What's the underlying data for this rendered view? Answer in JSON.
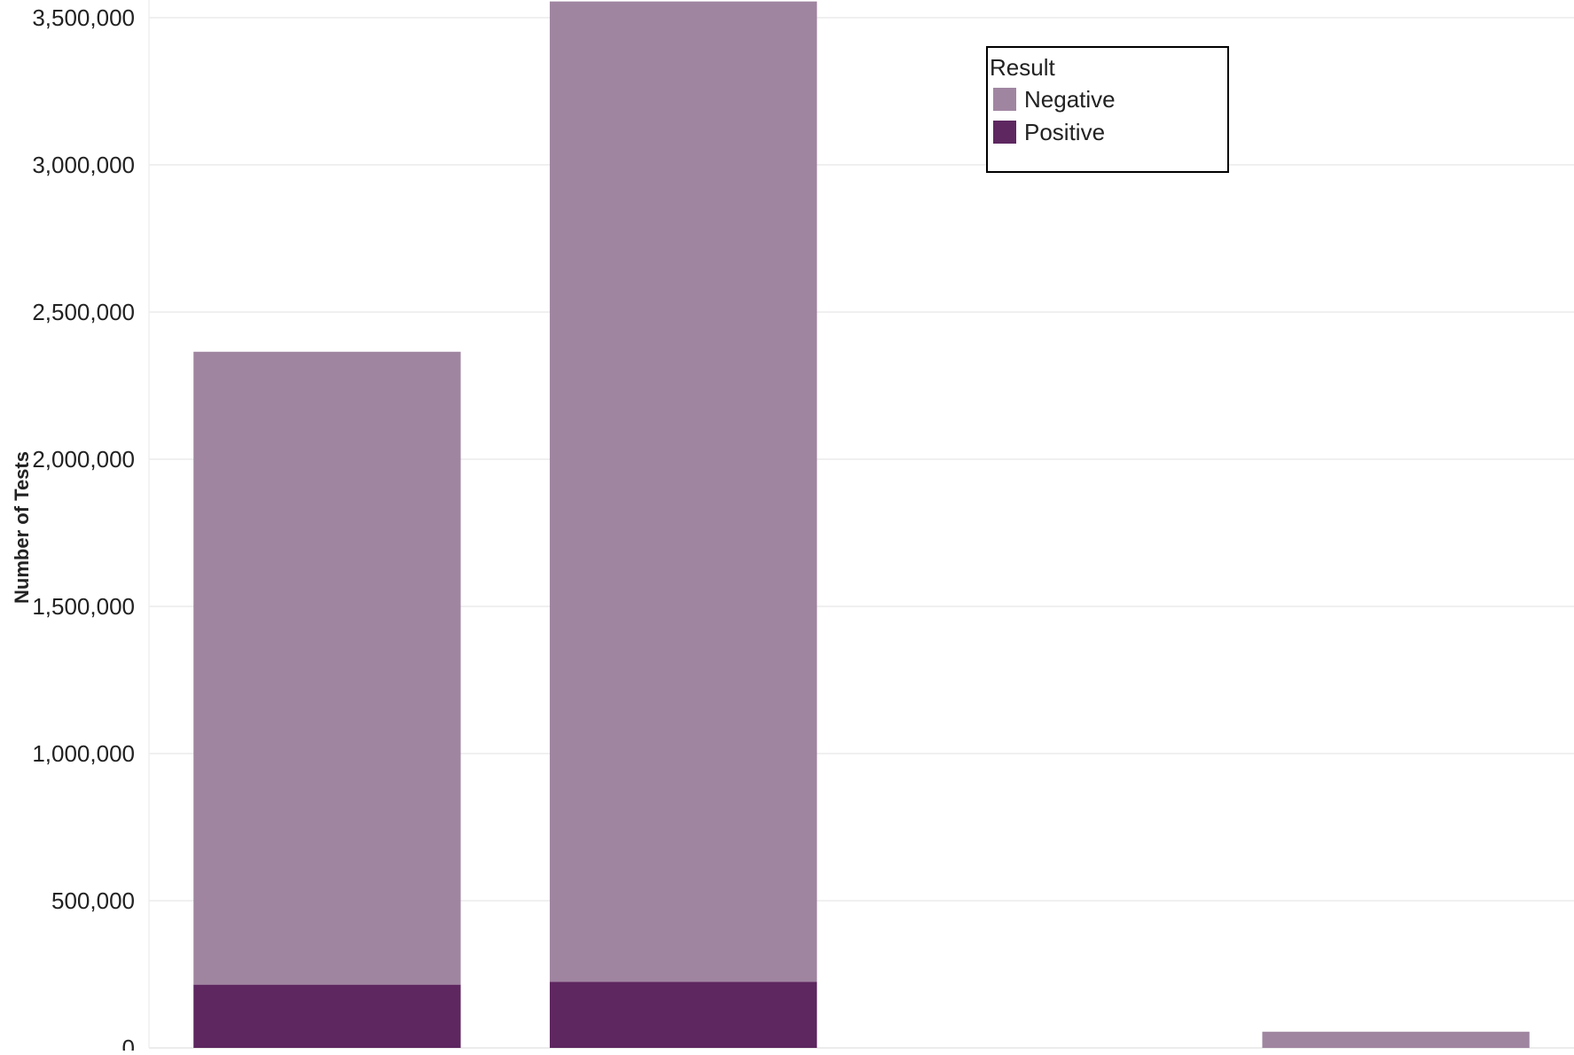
{
  "chart_data": {
    "type": "bar",
    "stacked": true,
    "title": "",
    "xlabel": "",
    "ylabel": "Number of Tests",
    "ylim": [
      0,
      3560000
    ],
    "yticks": [
      0,
      500000,
      1000000,
      1500000,
      2000000,
      2500000,
      3000000,
      3500000
    ],
    "ytick_labels": [
      "0",
      "500,000",
      "1,000,000",
      "1,500,000",
      "2,000,000",
      "2,500,000",
      "3,000,000",
      "3,500,000"
    ],
    "grid": true,
    "categories": [
      "",
      "",
      "",
      ""
    ],
    "series": [
      {
        "name": "Positive",
        "color": "#5e2760",
        "values": [
          215000,
          225000,
          0,
          0
        ]
      },
      {
        "name": "Negative",
        "color": "#a085a1",
        "values": [
          2150000,
          3330000,
          0,
          55000
        ]
      }
    ],
    "legend": {
      "title": "Result",
      "placement": "top-right",
      "entries": [
        "Negative",
        "Positive"
      ]
    }
  }
}
